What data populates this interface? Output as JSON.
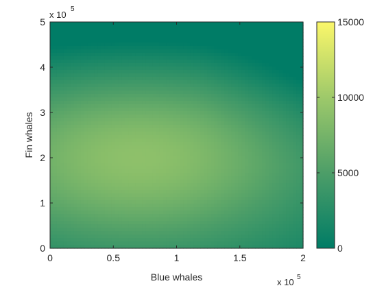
{
  "chart_data": {
    "type": "heatmap",
    "title": "",
    "xlabel": "Blue whales",
    "ylabel": "Fin whales",
    "xlim": [
      0,
      200000
    ],
    "ylim": [
      0,
      500000
    ],
    "x_ticks": [
      0,
      50000,
      100000,
      150000,
      200000
    ],
    "x_tick_labels": [
      "0",
      "0.5",
      "1",
      "1.5",
      "2"
    ],
    "y_ticks": [
      0,
      100000,
      200000,
      300000,
      400000,
      500000
    ],
    "y_tick_labels": [
      "0",
      "1",
      "2",
      "3",
      "4",
      "5"
    ],
    "x_exponent_base": "x 10",
    "x_exponent_power": "5",
    "y_exponent_base": "x 10",
    "y_exponent_power": "5",
    "colorbar": {
      "clim": [
        0,
        15000
      ],
      "ticks": [
        0,
        5000,
        10000,
        15000
      ],
      "tick_labels": [
        "0",
        "5000",
        "10000",
        "15000"
      ],
      "colors": [
        "#007c66",
        "#4d9e68",
        "#9ec96a",
        "#fbf76a"
      ]
    },
    "surface": {
      "peak_x": 70000,
      "peak_y": 200000,
      "peak_value": 9000,
      "corner_values": {
        "x0_y0": 3200,
        "x200000_y0": 1000,
        "x0_y500000": 400,
        "x200000_y500000": 0,
        "x200000_y400000": 0
      }
    }
  }
}
